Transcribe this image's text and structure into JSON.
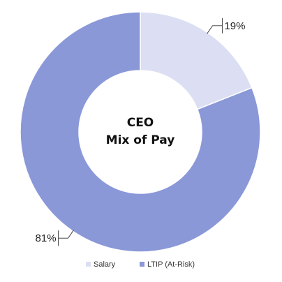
{
  "chart_data": {
    "type": "pie",
    "subtype": "donut",
    "center_title": [
      "CEO",
      "Mix of Pay"
    ],
    "slices": [
      {
        "name": "Salary",
        "value": 19,
        "label": "19%",
        "color": "#dcdff3"
      },
      {
        "name": "LTIP (At-Risk)",
        "value": 81,
        "label": "81%",
        "color": "#8a98d8"
      }
    ],
    "legend": {
      "position": "bottom",
      "entries": [
        "Salary",
        "LTIP (At-Risk)"
      ]
    }
  }
}
